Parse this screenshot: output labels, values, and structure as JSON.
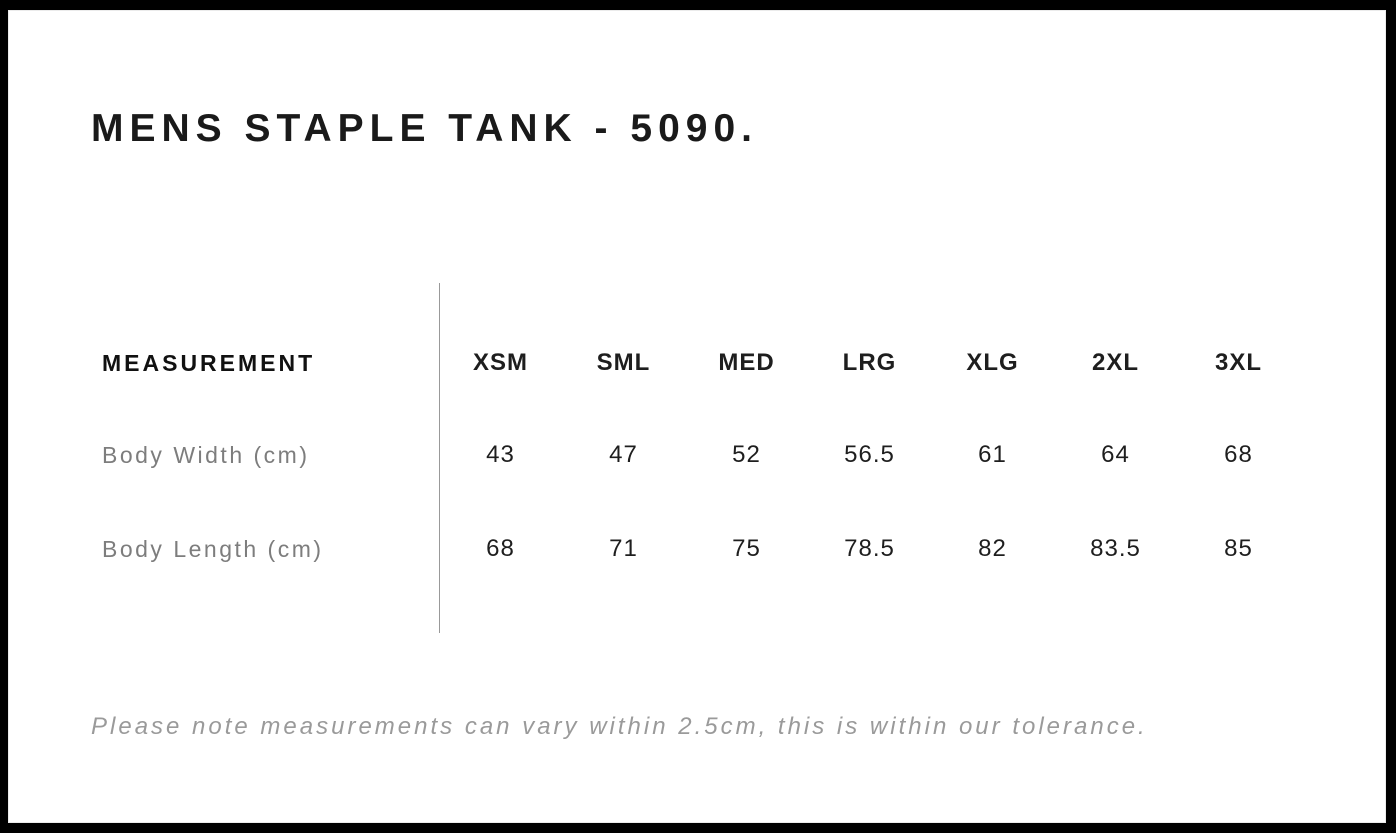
{
  "page": {
    "title": "MENS STAPLE TANK - 5090.",
    "note": "Please note measurements can vary within 2.5cm, this is within our tolerance."
  },
  "size_chart": {
    "label_header": "MEASUREMENT",
    "size_headers": [
      "XSM",
      "SML",
      "MED",
      "LRG",
      "XLG",
      "2XL",
      "3XL"
    ],
    "rows": [
      {
        "label": "Body Width (cm)",
        "values": [
          "43",
          "47",
          "52",
          "56.5",
          "61",
          "64",
          "68"
        ]
      },
      {
        "label": "Body Length (cm)",
        "values": [
          "68",
          "71",
          "75",
          "78.5",
          "82",
          "83.5",
          "85"
        ]
      }
    ]
  },
  "colors": {
    "frame": "#000000",
    "title_text": "#1a1a1a",
    "header_text": "#111111",
    "label_text": "#7d7d7d",
    "value_text": "#1e1e1e",
    "note_text": "#9a9a9a",
    "divider": "#999999",
    "background": "#ffffff"
  }
}
